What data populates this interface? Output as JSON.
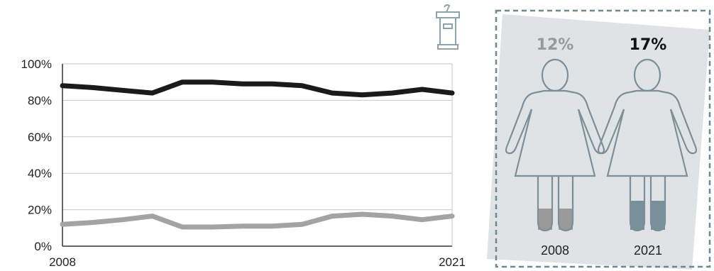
{
  "chart_data": {
    "type": "line",
    "x": [
      2008,
      2009,
      2010,
      2011,
      2012,
      2013,
      2014,
      2015,
      2016,
      2017,
      2018,
      2019,
      2020,
      2021
    ],
    "x_tick_labels": [
      "2008",
      "2021"
    ],
    "y_tick_labels": [
      "100%",
      "80%",
      "60%",
      "40%",
      "20%",
      "0%"
    ],
    "ylim": [
      0,
      100
    ],
    "grid": true,
    "series": [
      {
        "color": "#1a1a1a",
        "values": [
          88,
          87,
          85.5,
          84,
          90,
          90,
          89,
          89,
          88,
          84,
          83,
          84,
          86,
          84
        ]
      },
      {
        "color": "#a3a3a3",
        "values": [
          12,
          13,
          14.5,
          16.5,
          10.5,
          10.5,
          11,
          11,
          12,
          16.5,
          17.5,
          16.5,
          14.5,
          16.5
        ]
      }
    ],
    "comparison": {
      "items": [
        {
          "year": "2008",
          "value_label": "12%",
          "value": 12,
          "color": "#999999"
        },
        {
          "year": "2021",
          "value_label": "17%",
          "value": 17,
          "color": "#111111"
        }
      ]
    }
  },
  "icons": {
    "top": "podium-icon",
    "figures": "woman-icon"
  },
  "colors": {
    "panel_bg": "#dfe3e6",
    "panel_border": "#6f8791",
    "figure_outline": "#7c8f98",
    "fill_2008": "#9a9a9a",
    "fill_2021": "#7a8f99"
  }
}
